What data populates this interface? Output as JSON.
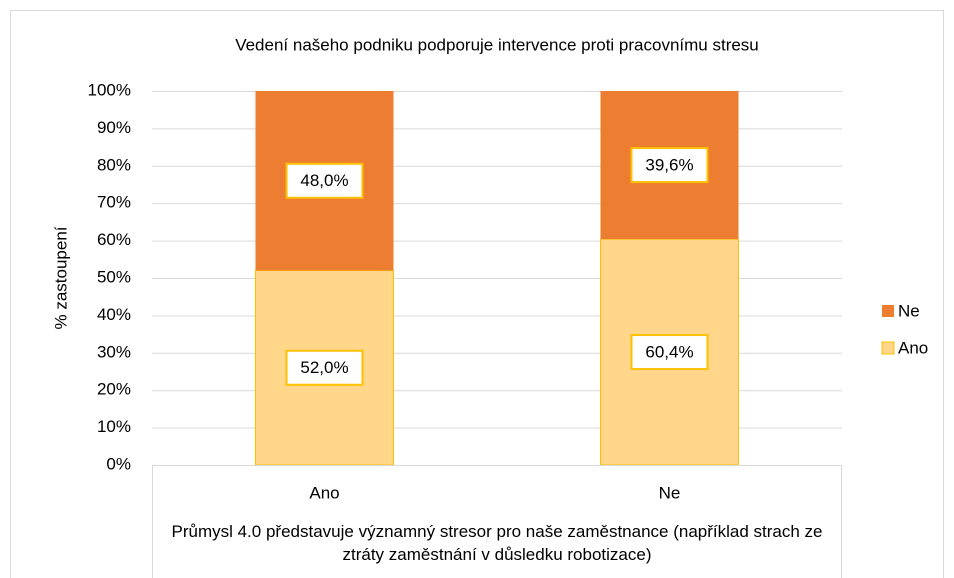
{
  "chart_data": {
    "type": "stacked_bar",
    "title": "Vedení našeho podniku podporuje intervence proti pracovnímu stresu",
    "x_label": "Průmysl  4.0 představuje významný stresor pro naše zaměstnance (například strach ze ztráty zaměstnání v důsledku robotizace)",
    "y_label": "% zastoupení",
    "categories": [
      "Ano",
      "Ne"
    ],
    "series": [
      {
        "name": "Ano",
        "color": "#ffd68a",
        "values": [
          52.0,
          60.4
        ],
        "value_labels": [
          "52,0%",
          "60,4%"
        ]
      },
      {
        "name": "Ne",
        "color": "#ed7d31",
        "values": [
          48.0,
          39.6
        ],
        "value_labels": [
          "48,0%",
          "39,6%"
        ]
      }
    ],
    "ylim": [
      0,
      100
    ],
    "yticks": [
      {
        "value": 0,
        "label": "0%"
      },
      {
        "value": 10,
        "label": "10%"
      },
      {
        "value": 20,
        "label": "20%"
      },
      {
        "value": 30,
        "label": "30%"
      },
      {
        "value": 40,
        "label": "40%"
      },
      {
        "value": 50,
        "label": "50%"
      },
      {
        "value": 60,
        "label": "60%"
      },
      {
        "value": 70,
        "label": "70%"
      },
      {
        "value": 80,
        "label": "80%"
      },
      {
        "value": 90,
        "label": "90%"
      },
      {
        "value": 100,
        "label": "100%"
      }
    ],
    "grid": true,
    "legend": "right"
  }
}
